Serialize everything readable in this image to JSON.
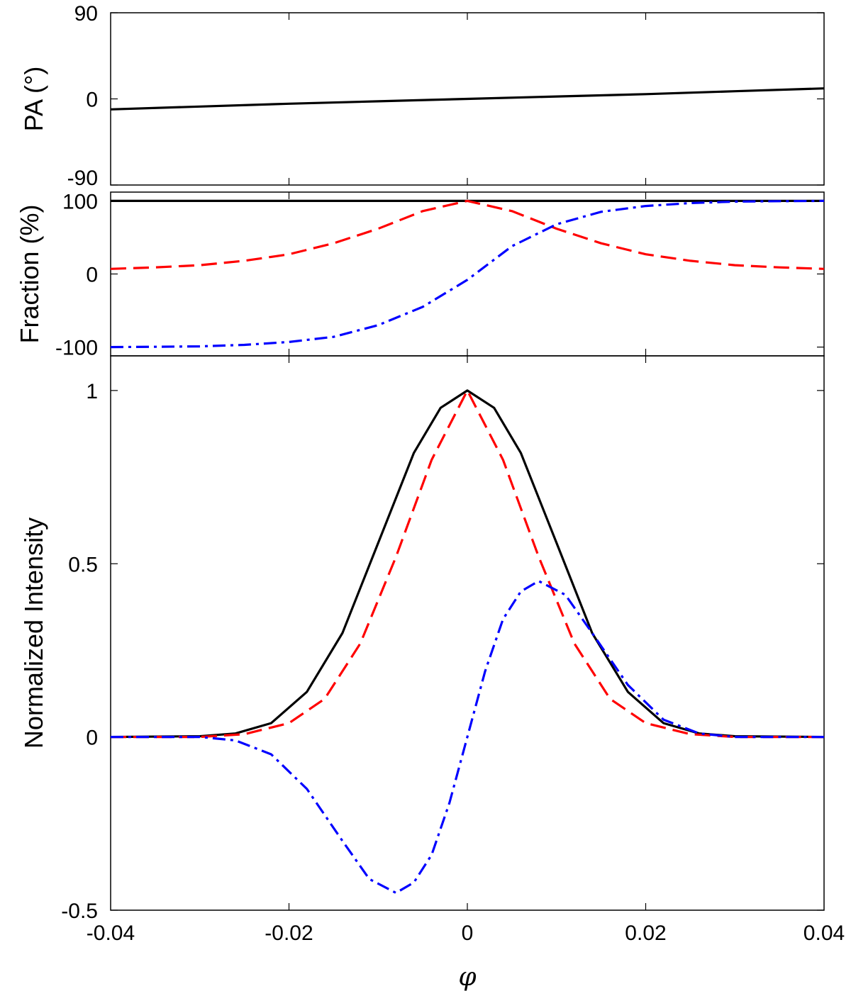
{
  "chart_data": [
    {
      "panel": "top",
      "type": "line",
      "ylabel": "PA (°)",
      "xlim": [
        -0.04,
        0.04
      ],
      "ylim": [
        -90,
        90
      ],
      "yticks": [
        "90",
        "0",
        "-90"
      ],
      "ytick_values": [
        90,
        0,
        -90
      ],
      "series": [
        {
          "color": "#000000",
          "style": "solid",
          "x": [
            -0.04,
            -0.03,
            -0.02,
            -0.01,
            0,
            0.01,
            0.02,
            0.03,
            0.04
          ],
          "y": [
            -11,
            -8,
            -5,
            -2.5,
            0,
            2.5,
            5,
            8,
            11
          ]
        }
      ]
    },
    {
      "panel": "middle",
      "type": "line",
      "ylabel": "Fraction (%)",
      "xlim": [
        -0.04,
        0.04
      ],
      "ylim": [
        -112,
        112
      ],
      "yticks": [
        "100",
        "0",
        "-100"
      ],
      "ytick_values": [
        100,
        0,
        -100
      ],
      "series": [
        {
          "color": "#000000",
          "style": "solid",
          "x": [
            -0.04,
            0.04
          ],
          "y": [
            100,
            100
          ]
        },
        {
          "color": "#ff0000",
          "style": "dashed",
          "x": [
            -0.04,
            -0.035,
            -0.03,
            -0.025,
            -0.02,
            -0.015,
            -0.01,
            -0.005,
            0,
            0.005,
            0.01,
            0.015,
            0.02,
            0.025,
            0.03,
            0.035,
            0.04
          ],
          "y": [
            7,
            9,
            12,
            18,
            27,
            42,
            62,
            86,
            100,
            86,
            62,
            42,
            27,
            18,
            12,
            9,
            7
          ]
        },
        {
          "color": "#0000ff",
          "style": "dashdot",
          "x": [
            -0.04,
            -0.035,
            -0.03,
            -0.025,
            -0.02,
            -0.015,
            -0.01,
            -0.005,
            0,
            0.005,
            0.01,
            0.015,
            0.02,
            0.025,
            0.03,
            0.035,
            0.04
          ],
          "y": [
            -100,
            -99.6,
            -99,
            -97,
            -93,
            -86,
            -70,
            -45,
            -8,
            38,
            68,
            85,
            93,
            97,
            99,
            99.6,
            100
          ]
        }
      ]
    },
    {
      "panel": "bottom",
      "type": "line",
      "xlabel": "φ",
      "ylabel": "Normalized Intensity",
      "xlim": [
        -0.04,
        0.04
      ],
      "ylim": [
        -0.5,
        1.1
      ],
      "xticks": [
        "-0.04",
        "-0.02",
        "0",
        "0.02",
        "0.04"
      ],
      "xtick_values": [
        -0.04,
        -0.02,
        0,
        0.02,
        0.04
      ],
      "yticks": [
        "1",
        "0.5",
        "0",
        "-0.5"
      ],
      "ytick_values": [
        1,
        0.5,
        0,
        -0.5
      ],
      "series": [
        {
          "color": "#000000",
          "style": "solid",
          "x": [
            -0.04,
            -0.03,
            -0.026,
            -0.022,
            -0.018,
            -0.014,
            -0.01,
            -0.006,
            -0.003,
            0,
            0.003,
            0.006,
            0.01,
            0.014,
            0.018,
            0.022,
            0.026,
            0.03,
            0.04
          ],
          "y": [
            0,
            0.002,
            0.01,
            0.04,
            0.13,
            0.3,
            0.56,
            0.82,
            0.95,
            1,
            0.95,
            0.82,
            0.56,
            0.3,
            0.13,
            0.04,
            0.01,
            0.002,
            0
          ]
        },
        {
          "color": "#ff0000",
          "style": "dashed",
          "x": [
            -0.04,
            -0.03,
            -0.025,
            -0.02,
            -0.016,
            -0.012,
            -0.008,
            -0.004,
            0,
            0.004,
            0.008,
            0.012,
            0.016,
            0.02,
            0.025,
            0.03,
            0.04
          ],
          "y": [
            0,
            0,
            0.008,
            0.04,
            0.11,
            0.27,
            0.52,
            0.8,
            1,
            0.8,
            0.52,
            0.27,
            0.11,
            0.04,
            0.008,
            0,
            0
          ]
        },
        {
          "color": "#0000ff",
          "style": "dashdot",
          "x": [
            -0.04,
            -0.03,
            -0.026,
            -0.022,
            -0.018,
            -0.014,
            -0.011,
            -0.008,
            -0.006,
            -0.004,
            -0.002,
            0,
            0.002,
            0.004,
            0.006,
            0.008,
            0.011,
            0.014,
            0.018,
            0.022,
            0.026,
            0.03,
            0.04
          ],
          "y": [
            0,
            0,
            -0.01,
            -0.05,
            -0.15,
            -0.3,
            -0.41,
            -0.45,
            -0.42,
            -0.34,
            -0.19,
            0,
            0.19,
            0.34,
            0.42,
            0.45,
            0.41,
            0.3,
            0.15,
            0.05,
            0.01,
            0,
            0
          ]
        }
      ]
    }
  ]
}
